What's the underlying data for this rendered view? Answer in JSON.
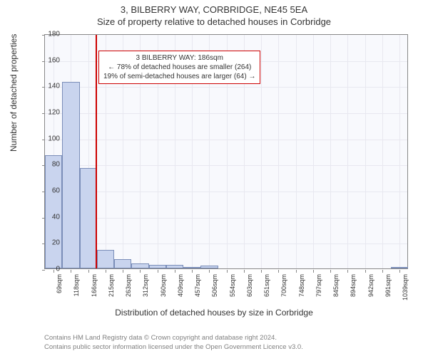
{
  "title_line1": "3, BILBERRY WAY, CORBRIDGE, NE45 5EA",
  "title_line2": "Size of property relative to detached houses in Corbridge",
  "y_axis_label": "Number of detached properties",
  "x_axis_label": "Distribution of detached houses by size in Corbridge",
  "caption_line1": "Contains HM Land Registry data © Crown copyright and database right 2024.",
  "caption_line2": "Contains public sector information licensed under the Open Government Licence v3.0.",
  "chart": {
    "type": "bar",
    "background_color": "#f8f9fd",
    "plot_border_color": "#888888",
    "grid_color": "#e8e8f0",
    "bar_fill": "#c9d4ee",
    "bar_border": "#7a8db8",
    "ylim": [
      0,
      180
    ],
    "ytick_step": 20,
    "xlim_min": 45,
    "xlim_max": 1065,
    "bin_width": 48.5,
    "bins": [
      {
        "start": 45,
        "label": "69sqm",
        "count": 87
      },
      {
        "start": 93.5,
        "label": "118sqm",
        "count": 143
      },
      {
        "start": 142,
        "label": "166sqm",
        "count": 77
      },
      {
        "start": 190.5,
        "label": "215sqm",
        "count": 14
      },
      {
        "start": 239,
        "label": "263sqm",
        "count": 7
      },
      {
        "start": 287.5,
        "label": "312sqm",
        "count": 4
      },
      {
        "start": 336,
        "label": "360sqm",
        "count": 3
      },
      {
        "start": 384.5,
        "label": "409sqm",
        "count": 3
      },
      {
        "start": 433,
        "label": "457sqm",
        "count": 1
      },
      {
        "start": 481.5,
        "label": "506sqm",
        "count": 2
      },
      {
        "start": 530,
        "label": "554sqm",
        "count": 0
      },
      {
        "start": 578.5,
        "label": "603sqm",
        "count": 0
      },
      {
        "start": 627,
        "label": "651sqm",
        "count": 0
      },
      {
        "start": 675.5,
        "label": "700sqm",
        "count": 0
      },
      {
        "start": 724,
        "label": "748sqm",
        "count": 0
      },
      {
        "start": 772.5,
        "label": "797sqm",
        "count": 0
      },
      {
        "start": 821,
        "label": "845sqm",
        "count": 0
      },
      {
        "start": 869.5,
        "label": "894sqm",
        "count": 0
      },
      {
        "start": 918,
        "label": "942sqm",
        "count": 0
      },
      {
        "start": 966.5,
        "label": "991sqm",
        "count": 0
      },
      {
        "start": 1015,
        "label": "1039sqm",
        "count": 1
      }
    ],
    "marker": {
      "value": 186,
      "color": "#cc0000"
    },
    "annotation": {
      "line1": "3 BILBERRY WAY: 186sqm",
      "line2": "← 78% of detached houses are smaller (264)",
      "line3": "19% of semi-detached houses are larger (64) →",
      "border_color": "#cc0000",
      "text_color": "#333333",
      "fontsize": 10,
      "x_data": 195,
      "y_data": 168
    },
    "title_fontsize": 13,
    "axis_label_fontsize": 12,
    "tick_fontsize": 10
  }
}
